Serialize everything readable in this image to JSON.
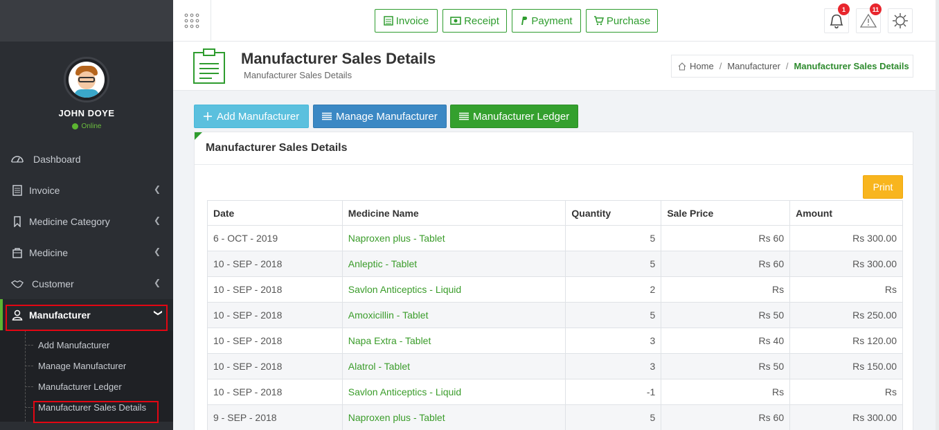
{
  "header": {
    "quick_buttons": [
      {
        "label": "Invoice",
        "icon": "invoice-icon"
      },
      {
        "label": "Receipt",
        "icon": "money-icon"
      },
      {
        "label": "Payment",
        "icon": "paypal-icon"
      },
      {
        "label": "Purchase",
        "icon": "cart-icon"
      }
    ],
    "notifications_count": "1",
    "alerts_count": "11"
  },
  "sidebar": {
    "user_name": "JOHN DOYE",
    "user_status": "Online",
    "items": [
      {
        "label": "Dashboard",
        "icon": "dashboard-icon"
      },
      {
        "label": "Invoice",
        "icon": "invoice-icon"
      },
      {
        "label": "Medicine Category",
        "icon": "bookmark-icon"
      },
      {
        "label": "Medicine",
        "icon": "bag-icon"
      },
      {
        "label": "Customer",
        "icon": "handshake-icon"
      },
      {
        "label": "Manufacturer",
        "icon": "user-icon"
      }
    ],
    "submenu": [
      {
        "label": "Add Manufacturer"
      },
      {
        "label": "Manage Manufacturer"
      },
      {
        "label": "Manufacturer Ledger"
      },
      {
        "label": "Manufacturer Sales Details"
      }
    ]
  },
  "page": {
    "title": "Manufacturer Sales Details",
    "subtitle": "Manufacturer Sales Details",
    "breadcrumb": [
      "Home",
      "Manufacturer",
      "Manufacturer Sales Details"
    ]
  },
  "actions": {
    "add": "Add Manufacturer",
    "manage": "Manage Manufacturer",
    "ledger": "Manufacturer Ledger"
  },
  "panel": {
    "title": "Manufacturer Sales Details",
    "print_label": "Print"
  },
  "table": {
    "columns": [
      "Date",
      "Medicine Name",
      "Quantity",
      "Sale Price",
      "Amount"
    ],
    "rows": [
      [
        "6 - OCT - 2019",
        "Naproxen plus - Tablet",
        "5",
        "Rs 60",
        "Rs 300.00"
      ],
      [
        "10 - SEP - 2018",
        "Anleptic - Tablet",
        "5",
        "Rs 60",
        "Rs 300.00"
      ],
      [
        "10 - SEP - 2018",
        "Savlon Anticeptics - Liquid",
        "2",
        "Rs",
        "Rs"
      ],
      [
        "10 - SEP - 2018",
        "Amoxicillin - Tablet",
        "5",
        "Rs 50",
        "Rs 250.00"
      ],
      [
        "10 - SEP - 2018",
        "Napa Extra - Tablet",
        "3",
        "Rs 40",
        "Rs 120.00"
      ],
      [
        "10 - SEP - 2018",
        "Alatrol - Tablet",
        "3",
        "Rs 50",
        "Rs 150.00"
      ],
      [
        "10 - SEP - 2018",
        "Savlon Anticeptics - Liquid",
        "-1",
        "Rs",
        "Rs"
      ],
      [
        "9 - SEP - 2018",
        "Naproxen plus - Tablet",
        "5",
        "Rs 60",
        "Rs 300.00"
      ]
    ]
  },
  "colors": {
    "accent_green": "#2e9c2e",
    "sidebar_bg": "#2b2e33",
    "highlight_red": "#e30613",
    "print_yellow": "#f8b51e"
  }
}
